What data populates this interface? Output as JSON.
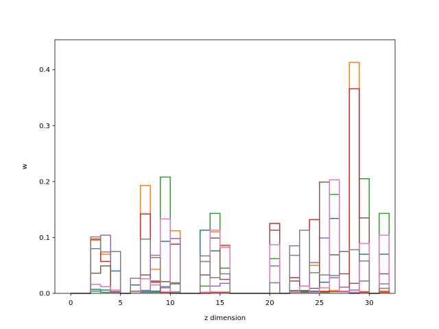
{
  "chart_data": {
    "type": "step-histogram",
    "title": "",
    "xlabel": "z dimension",
    "ylabel": "w",
    "xlim": [
      -1.6,
      32.6
    ],
    "ylim": [
      0,
      0.4536
    ],
    "xticks": [
      0,
      5,
      10,
      15,
      20,
      25,
      30
    ],
    "yticks": [
      0.0,
      0.1,
      0.2,
      0.3,
      0.4
    ],
    "ytick_labels": [
      "0.0",
      "0.1",
      "0.2",
      "0.3",
      "0.4"
    ],
    "grid": false,
    "bin_start": 0,
    "bin_width": 1,
    "series": [
      {
        "color": "#1f77b4",
        "values": [
          0.0,
          0.0,
          0.007,
          0.006,
          0.04,
          0.0,
          0.015,
          0.005,
          0.004,
          0.093,
          0.0,
          0.0,
          0.0,
          0.113,
          0.076,
          0.086,
          0.0,
          0.0,
          0.0,
          0.0,
          0.0,
          0.0,
          0.005,
          0.005,
          0.004,
          0.02,
          0.134,
          0.075,
          0.0,
          0.07,
          0.0,
          0.07
        ]
      },
      {
        "color": "#ff7f0e",
        "values": [
          0.0,
          0.0,
          0.095,
          0.07,
          0.003,
          0.0,
          0.003,
          0.193,
          0.043,
          0.002,
          0.112,
          0.0,
          0.0,
          0.0,
          0.11,
          0.085,
          0.0,
          0.0,
          0.0,
          0.0,
          0.0,
          0.0,
          0.003,
          0.003,
          0.05,
          0.004,
          0.005,
          0.003,
          0.413,
          0.003,
          0.0,
          0.004
        ]
      },
      {
        "color": "#2ca02c",
        "values": [
          0.0,
          0.0,
          0.004,
          0.002,
          0.002,
          0.0,
          0.004,
          0.002,
          0.002,
          0.208,
          0.002,
          0.0,
          0.0,
          0.013,
          0.143,
          0.045,
          0.0,
          0.0,
          0.0,
          0.0,
          0.062,
          0.0,
          0.002,
          0.002,
          0.002,
          0.002,
          0.177,
          0.003,
          0.002,
          0.205,
          0.0,
          0.143
        ]
      },
      {
        "color": "#d62728",
        "values": [
          0.0,
          0.0,
          0.097,
          0.057,
          0.003,
          0.0,
          0.003,
          0.142,
          0.02,
          0.002,
          0.088,
          0.0,
          0.0,
          0.002,
          0.002,
          0.002,
          0.0,
          0.0,
          0.0,
          0.0,
          0.125,
          0.0,
          0.028,
          0.003,
          0.132,
          0.003,
          0.003,
          0.003,
          0.366,
          0.002,
          0.0,
          0.002
        ]
      },
      {
        "color": "#9467bd",
        "values": [
          0.0,
          0.0,
          0.08,
          0.104,
          0.002,
          0.0,
          0.003,
          0.003,
          0.068,
          0.01,
          0.098,
          0.0,
          0.0,
          0.057,
          0.013,
          0.018,
          0.0,
          0.0,
          0.0,
          0.0,
          0.049,
          0.0,
          0.085,
          0.013,
          0.055,
          0.099,
          0.028,
          0.011,
          0.006,
          0.022,
          0.0,
          0.017
        ]
      },
      {
        "color": "#8c564b",
        "values": [
          0.0,
          0.0,
          0.036,
          0.049,
          0.003,
          0.0,
          0.003,
          0.033,
          0.022,
          0.021,
          0.017,
          0.0,
          0.0,
          0.033,
          0.099,
          0.025,
          0.0,
          0.0,
          0.0,
          0.0,
          0.113,
          0.0,
          0.022,
          0.003,
          0.009,
          0.199,
          0.069,
          0.035,
          0.018,
          0.135,
          0.0,
          0.035
        ]
      },
      {
        "color": "#e377c2",
        "values": [
          0.0,
          0.0,
          0.016,
          0.012,
          0.006,
          0.0,
          0.003,
          0.026,
          0.015,
          0.133,
          0.003,
          0.0,
          0.0,
          0.002,
          0.113,
          0.082,
          0.0,
          0.0,
          0.0,
          0.0,
          0.087,
          0.0,
          0.002,
          0.013,
          0.002,
          0.01,
          0.203,
          0.004,
          0.002,
          0.089,
          0.0,
          0.104
        ]
      },
      {
        "color": "#7f7f7f",
        "values": [
          0.0,
          0.0,
          0.101,
          0.074,
          0.075,
          0.0,
          0.027,
          0.097,
          0.064,
          0.012,
          0.019,
          0.0,
          0.0,
          0.067,
          0.028,
          0.035,
          0.0,
          0.0,
          0.0,
          0.0,
          0.019,
          0.0,
          0.068,
          0.113,
          0.037,
          0.033,
          0.032,
          0.075,
          0.078,
          0.058,
          0.0,
          0.009
        ]
      }
    ]
  }
}
